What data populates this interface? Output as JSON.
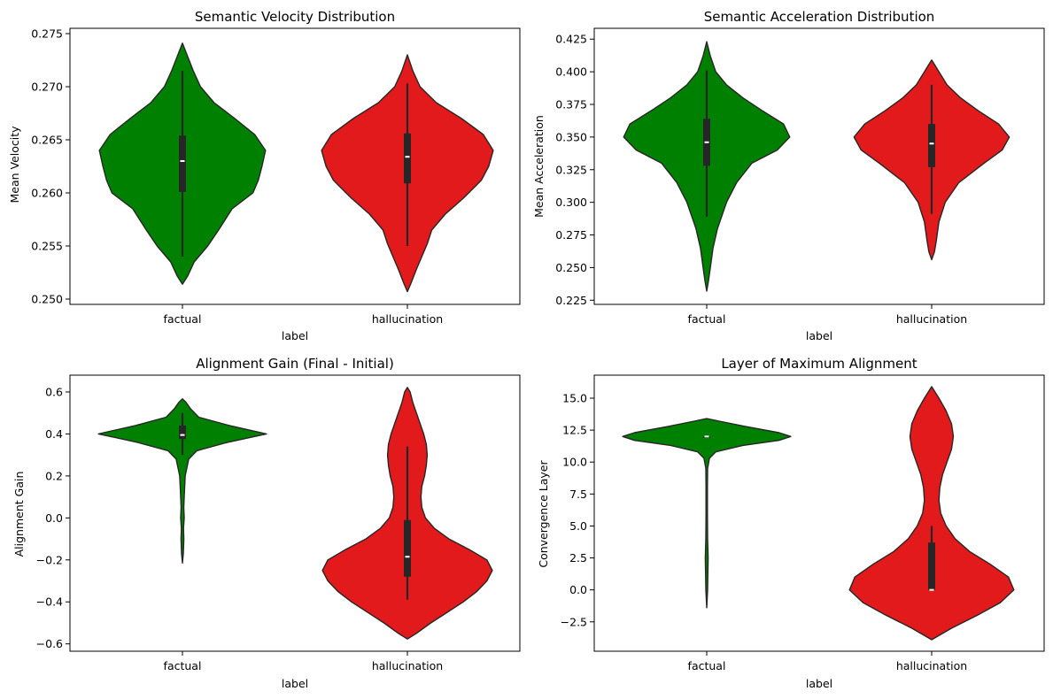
{
  "chart_data": [
    {
      "type": "violin",
      "title": "Semantic Velocity Distribution",
      "xlabel": "label",
      "ylabel": "Mean Velocity",
      "categories": [
        "factual",
        "hallucination"
      ],
      "ylim": [
        0.2495,
        0.2755
      ],
      "yticks": [
        0.25,
        0.255,
        0.26,
        0.265,
        0.27,
        0.275
      ],
      "ytick_labels": [
        "0.250",
        "0.255",
        "0.260",
        "0.265",
        "0.270",
        "0.275"
      ],
      "series": [
        {
          "name": "factual",
          "color": "#008000",
          "kde": [
            [
              0.2514,
              0.0
            ],
            [
              0.2522,
              0.06
            ],
            [
              0.2535,
              0.13
            ],
            [
              0.255,
              0.28
            ],
            [
              0.2565,
              0.4
            ],
            [
              0.2585,
              0.55
            ],
            [
              0.26,
              0.78
            ],
            [
              0.2612,
              0.84
            ],
            [
              0.2625,
              0.88
            ],
            [
              0.264,
              0.92
            ],
            [
              0.2655,
              0.8
            ],
            [
              0.267,
              0.58
            ],
            [
              0.2685,
              0.35
            ],
            [
              0.27,
              0.2
            ],
            [
              0.2715,
              0.12
            ],
            [
              0.2728,
              0.06
            ],
            [
              0.2741,
              0.0
            ]
          ],
          "whisker": [
            0.254,
            0.2715
          ],
          "q1": 0.2601,
          "median": 0.263,
          "q3": 0.2654
        },
        {
          "name": "hallucination",
          "color": "#e31a1c",
          "kde": [
            [
              0.2507,
              0.0
            ],
            [
              0.2515,
              0.04
            ],
            [
              0.2528,
              0.1
            ],
            [
              0.254,
              0.16
            ],
            [
              0.2552,
              0.22
            ],
            [
              0.2565,
              0.27
            ],
            [
              0.258,
              0.42
            ],
            [
              0.2595,
              0.62
            ],
            [
              0.2612,
              0.82
            ],
            [
              0.2625,
              0.9
            ],
            [
              0.264,
              0.95
            ],
            [
              0.2655,
              0.84
            ],
            [
              0.267,
              0.6
            ],
            [
              0.2685,
              0.32
            ],
            [
              0.27,
              0.14
            ],
            [
              0.2715,
              0.06
            ],
            [
              0.273,
              0.0
            ]
          ],
          "whisker": [
            0.255,
            0.2703
          ],
          "q1": 0.2609,
          "median": 0.2634,
          "q3": 0.2656
        }
      ]
    },
    {
      "type": "violin",
      "title": "Semantic Acceleration Distribution",
      "xlabel": "label",
      "ylabel": "Mean Acceleration",
      "categories": [
        "factual",
        "hallucination"
      ],
      "ylim": [
        0.2218,
        0.4333
      ],
      "yticks": [
        0.225,
        0.25,
        0.275,
        0.3,
        0.325,
        0.35,
        0.375,
        0.4,
        0.425
      ],
      "ytick_labels": [
        "0.225",
        "0.250",
        "0.275",
        "0.300",
        "0.325",
        "0.350",
        "0.375",
        "0.400",
        "0.425"
      ],
      "series": [
        {
          "name": "factual",
          "color": "#008000",
          "kde": [
            [
              0.232,
              0.0
            ],
            [
              0.24,
              0.02
            ],
            [
              0.25,
              0.04
            ],
            [
              0.265,
              0.07
            ],
            [
              0.28,
              0.12
            ],
            [
              0.3,
              0.22
            ],
            [
              0.315,
              0.33
            ],
            [
              0.33,
              0.5
            ],
            [
              0.34,
              0.78
            ],
            [
              0.35,
              0.92
            ],
            [
              0.36,
              0.85
            ],
            [
              0.37,
              0.62
            ],
            [
              0.38,
              0.4
            ],
            [
              0.39,
              0.22
            ],
            [
              0.4,
              0.1
            ],
            [
              0.412,
              0.04
            ],
            [
              0.423,
              0.0
            ]
          ],
          "whisker": [
            0.289,
            0.401
          ],
          "q1": 0.328,
          "median": 0.346,
          "q3": 0.364
        },
        {
          "name": "hallucination",
          "color": "#e31a1c",
          "kde": [
            [
              0.256,
              0.0
            ],
            [
              0.262,
              0.03
            ],
            [
              0.27,
              0.05
            ],
            [
              0.285,
              0.08
            ],
            [
              0.3,
              0.15
            ],
            [
              0.315,
              0.3
            ],
            [
              0.33,
              0.58
            ],
            [
              0.34,
              0.78
            ],
            [
              0.35,
              0.86
            ],
            [
              0.36,
              0.74
            ],
            [
              0.37,
              0.52
            ],
            [
              0.38,
              0.32
            ],
            [
              0.39,
              0.17
            ],
            [
              0.4,
              0.08
            ],
            [
              0.409,
              0.0
            ]
          ],
          "whisker": [
            0.291,
            0.39
          ],
          "q1": 0.327,
          "median": 0.345,
          "q3": 0.36
        }
      ]
    },
    {
      "type": "violin",
      "title": "Alignment Gain (Final - Initial)",
      "xlabel": "label",
      "ylabel": "Alignment Gain",
      "categories": [
        "factual",
        "hallucination"
      ],
      "ylim": [
        -0.635,
        0.68
      ],
      "yticks": [
        -0.6,
        -0.4,
        -0.2,
        0.0,
        0.2,
        0.4,
        0.6
      ],
      "ytick_labels": [
        "−0.6",
        "−0.4",
        "−0.2",
        "0.0",
        "0.2",
        "0.4",
        "0.6"
      ],
      "series": [
        {
          "name": "factual",
          "color": "#008000",
          "kde": [
            [
              -0.215,
              0.0
            ],
            [
              -0.17,
              0.01
            ],
            [
              -0.1,
              0.016
            ],
            [
              -0.05,
              0.012
            ],
            [
              0.0,
              0.02
            ],
            [
              0.05,
              0.015
            ],
            [
              0.1,
              0.02
            ],
            [
              0.2,
              0.03
            ],
            [
              0.28,
              0.07
            ],
            [
              0.32,
              0.16
            ],
            [
              0.36,
              0.5
            ],
            [
              0.4,
              0.93
            ],
            [
              0.44,
              0.52
            ],
            [
              0.48,
              0.18
            ],
            [
              0.52,
              0.09
            ],
            [
              0.55,
              0.04
            ],
            [
              0.567,
              0.0
            ]
          ],
          "whisker": [
            0.3,
            0.5
          ],
          "q1": 0.376,
          "median": 0.395,
          "q3": 0.44
        },
        {
          "name": "hallucination",
          "color": "#e31a1c",
          "kde": [
            [
              -0.577,
              0.0
            ],
            [
              -0.55,
              0.1
            ],
            [
              -0.5,
              0.26
            ],
            [
              -0.45,
              0.44
            ],
            [
              -0.4,
              0.62
            ],
            [
              -0.35,
              0.77
            ],
            [
              -0.3,
              0.88
            ],
            [
              -0.25,
              0.94
            ],
            [
              -0.2,
              0.88
            ],
            [
              -0.15,
              0.68
            ],
            [
              -0.1,
              0.46
            ],
            [
              -0.05,
              0.3
            ],
            [
              0.0,
              0.2
            ],
            [
              0.05,
              0.16
            ],
            [
              0.1,
              0.15
            ],
            [
              0.15,
              0.16
            ],
            [
              0.2,
              0.19
            ],
            [
              0.25,
              0.21
            ],
            [
              0.3,
              0.22
            ],
            [
              0.35,
              0.21
            ],
            [
              0.4,
              0.18
            ],
            [
              0.45,
              0.14
            ],
            [
              0.5,
              0.1
            ],
            [
              0.55,
              0.06
            ],
            [
              0.6,
              0.03
            ],
            [
              0.622,
              0.0
            ]
          ],
          "whisker": [
            -0.39,
            0.34
          ],
          "q1": -0.28,
          "median": -0.185,
          "q3": -0.01
        }
      ]
    },
    {
      "type": "violin",
      "title": "Layer of Maximum Alignment",
      "xlabel": "label",
      "ylabel": "Convergence Layer",
      "categories": [
        "factual",
        "hallucination"
      ],
      "ylim": [
        -4.8,
        16.8
      ],
      "yticks": [
        -2.5,
        0.0,
        2.5,
        5.0,
        7.5,
        10.0,
        12.5,
        15.0
      ],
      "ytick_labels": [
        "−2.5",
        "0.0",
        "2.5",
        "5.0",
        "7.5",
        "10.0",
        "12.5",
        "15.0"
      ],
      "series": [
        {
          "name": "factual",
          "color": "#008000",
          "kde": [
            [
              -1.4,
              0.0
            ],
            [
              0.0,
              0.01
            ],
            [
              1.0,
              0.012
            ],
            [
              2.5,
              0.016
            ],
            [
              4.0,
              0.01
            ],
            [
              6.0,
              0.008
            ],
            [
              8.0,
              0.008
            ],
            [
              9.5,
              0.01
            ],
            [
              10.3,
              0.03
            ],
            [
              10.8,
              0.1
            ],
            [
              11.3,
              0.4
            ],
            [
              11.7,
              0.8
            ],
            [
              12.0,
              0.93
            ],
            [
              12.3,
              0.8
            ],
            [
              12.8,
              0.42
            ],
            [
              13.2,
              0.14
            ],
            [
              13.4,
              0.0
            ]
          ],
          "whisker": [
            12.0,
            12.0
          ],
          "q1": 12.0,
          "median": 12.0,
          "q3": 12.0
        },
        {
          "name": "hallucination",
          "color": "#e31a1c",
          "kde": [
            [
              -3.9,
              0.0
            ],
            [
              -3.0,
              0.22
            ],
            [
              -2.0,
              0.5
            ],
            [
              -1.0,
              0.76
            ],
            [
              0.0,
              0.91
            ],
            [
              1.0,
              0.85
            ],
            [
              2.0,
              0.65
            ],
            [
              3.0,
              0.42
            ],
            [
              4.0,
              0.26
            ],
            [
              5.0,
              0.16
            ],
            [
              6.0,
              0.1
            ],
            [
              7.0,
              0.08
            ],
            [
              8.0,
              0.09
            ],
            [
              9.0,
              0.12
            ],
            [
              10.0,
              0.17
            ],
            [
              11.0,
              0.22
            ],
            [
              12.0,
              0.24
            ],
            [
              13.0,
              0.22
            ],
            [
              14.0,
              0.16
            ],
            [
              15.0,
              0.08
            ],
            [
              15.9,
              0.0
            ]
          ],
          "whisker": [
            0.0,
            5.0
          ],
          "q1": 0.0,
          "median": 0.0,
          "q3": 3.7
        }
      ]
    }
  ]
}
